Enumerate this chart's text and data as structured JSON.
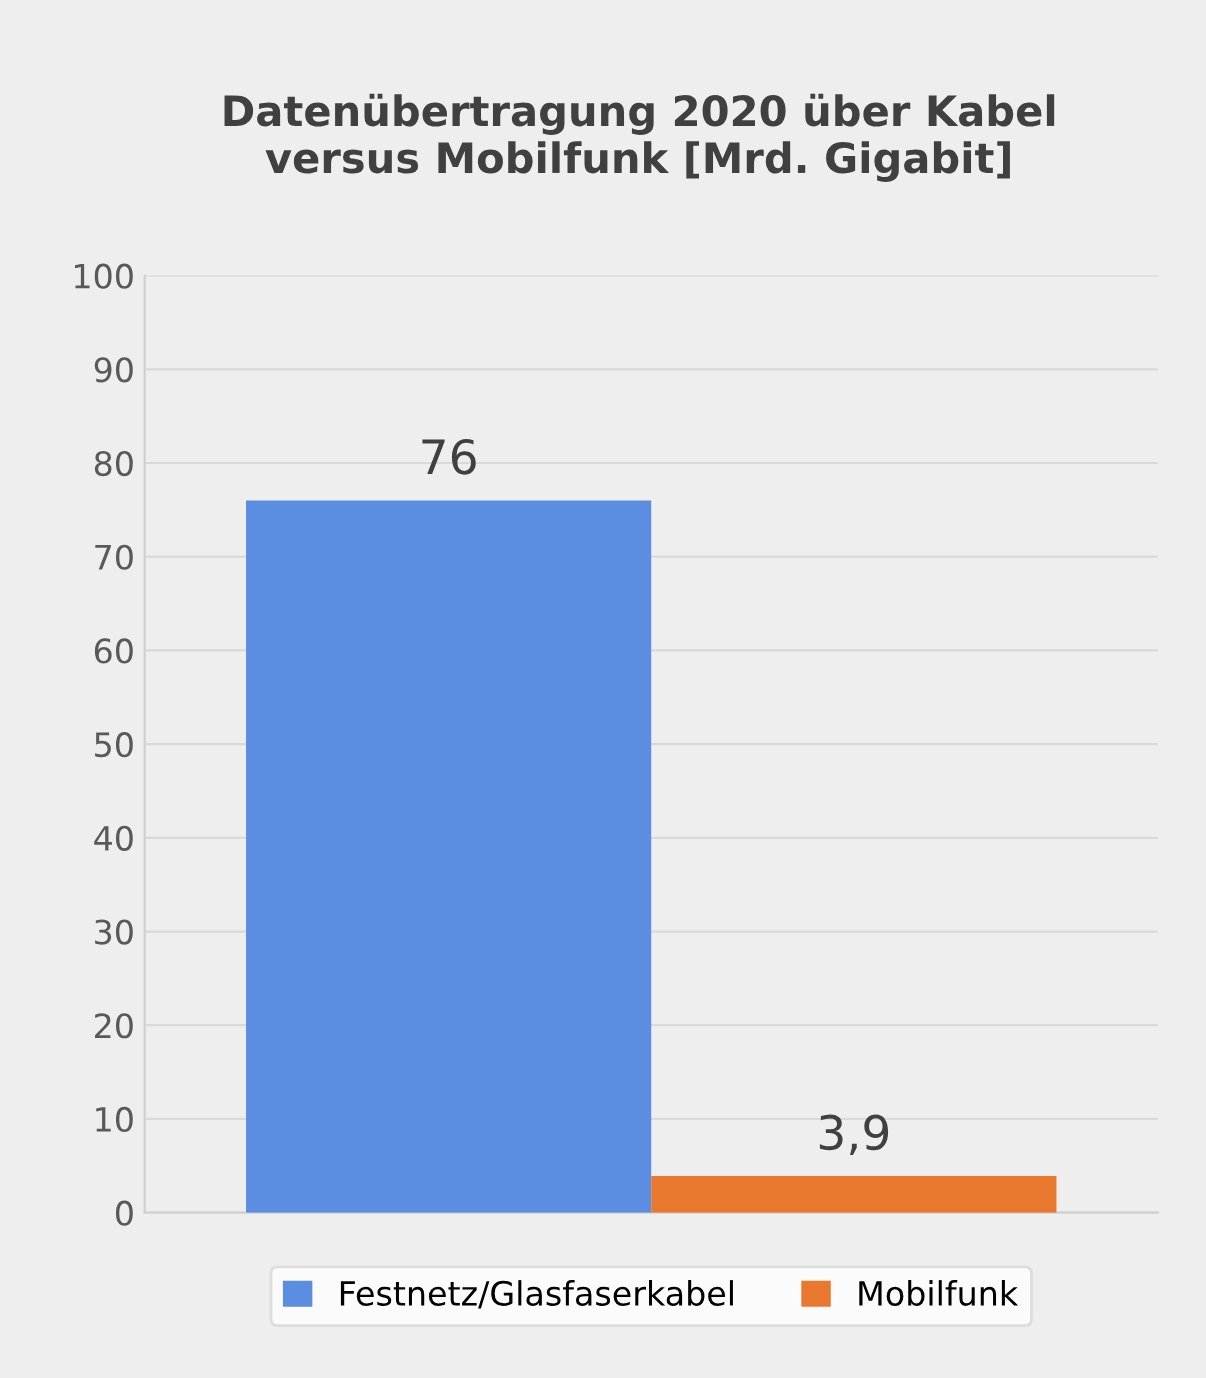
{
  "chart_data": {
    "type": "bar",
    "title": "Datenübertragung 2020 über Kabel\nversus Mobilfunk [Mrd. Gigabit]",
    "categories": [
      null
    ],
    "series": [
      {
        "name": "Festnetz/Glasfaserkabel",
        "color": "#5b8ee0",
        "values": [
          76
        ],
        "value_labels": [
          "76"
        ]
      },
      {
        "name": "Mobilfunk",
        "color": "#e8782e",
        "values": [
          3.9
        ],
        "value_labels": [
          "3,9"
        ]
      }
    ],
    "ylim": [
      0,
      100
    ],
    "yticks": [
      0,
      10,
      20,
      30,
      40,
      50,
      60,
      70,
      80,
      90,
      100
    ],
    "grid": "y",
    "legend": "bottom"
  }
}
